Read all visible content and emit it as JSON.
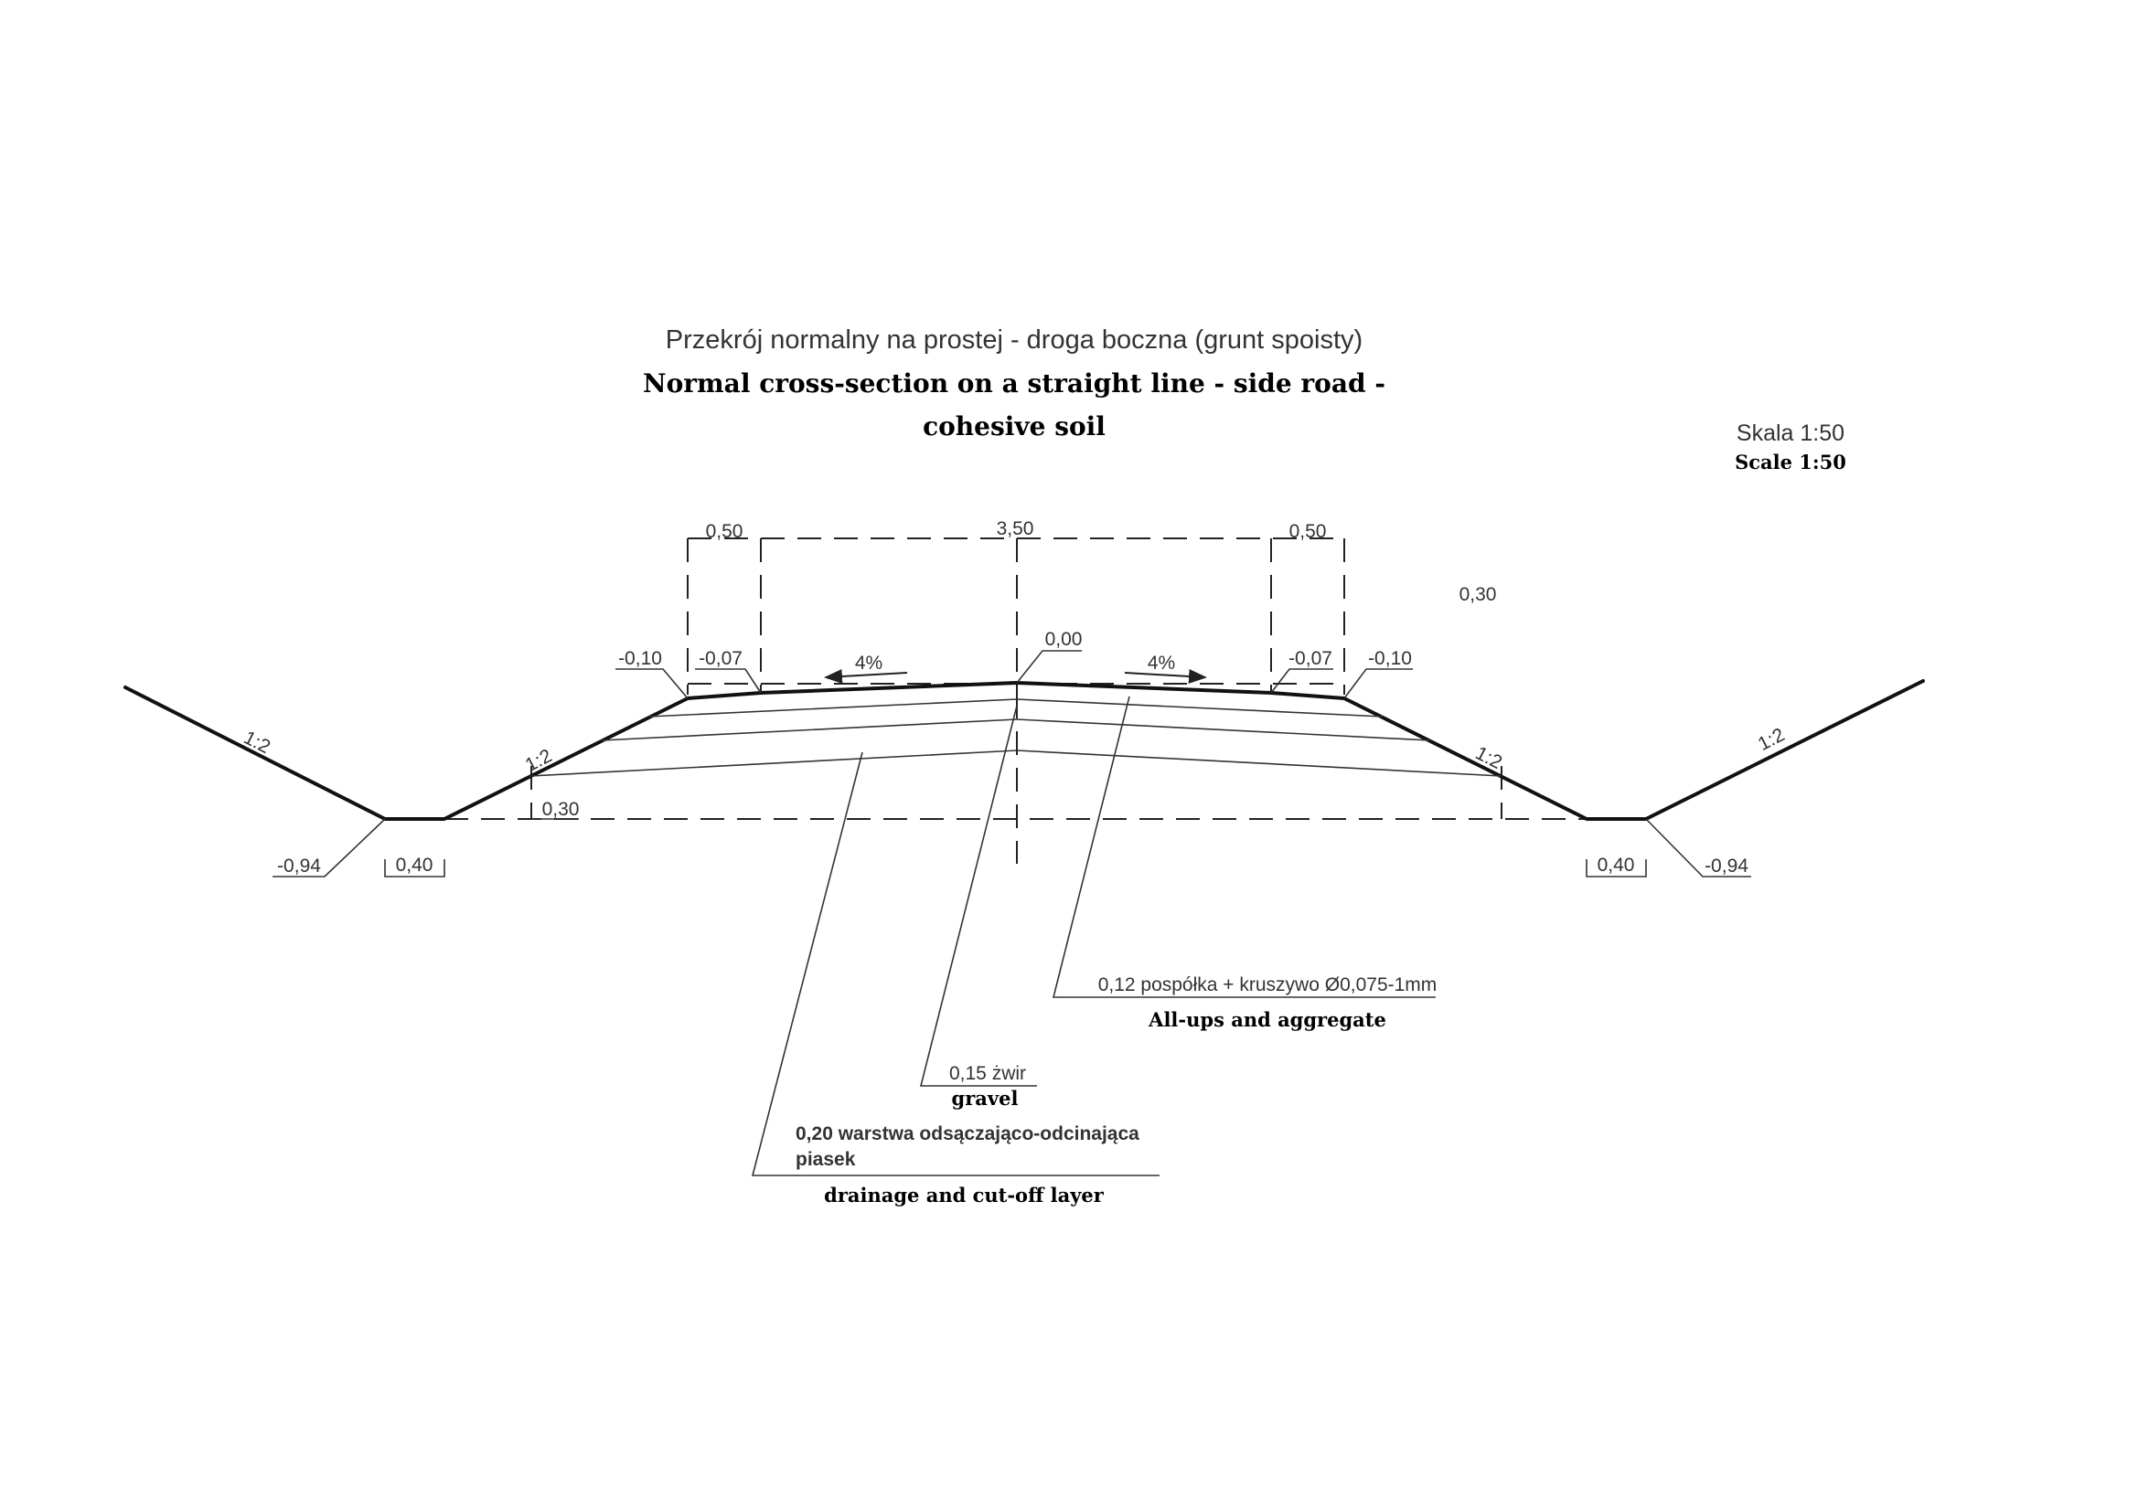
{
  "title": {
    "polish": "Przekrój normalny na prostej - droga boczna (grunt spoisty)",
    "english_line1": "Normal cross-section on a straight line - side road -",
    "english_line2": "cohesive soil"
  },
  "scale": {
    "polish": "Skala 1:50",
    "english": "Scale 1:50"
  },
  "dimensions": {
    "top_left_shoulder": "0,50",
    "top_center": "3,50",
    "top_right_shoulder": "0,50",
    "right_depth": "0,30",
    "bottom_left_depth": "0,30",
    "ditch_left_width": "0,40",
    "ditch_right_width": "0,40"
  },
  "elevations": {
    "left_edge": "-0,10",
    "left_carriageway": "-0,07",
    "axis": "0,00",
    "right_carriageway": "-0,07",
    "right_edge": "-0,10",
    "ditch_left": "-0,94",
    "ditch_right": "-0,94"
  },
  "slopes": {
    "outer_left": "1:2",
    "inner_left": "1:2",
    "inner_right": "1:2",
    "outer_right": "1:2",
    "cross_fall_left": "4%",
    "cross_fall_right": "4%"
  },
  "layers": [
    {
      "polish": "0,12 pospółka + kruszywo Ø0,075-1mm",
      "english": "All-ups and aggregate"
    },
    {
      "polish": "0,15 żwir",
      "english": "gravel"
    },
    {
      "polish_line1": "0,20 warstwa odsączająco-odcinająca",
      "polish_line2": "piasek",
      "english": "drainage and cut-off layer"
    }
  ]
}
